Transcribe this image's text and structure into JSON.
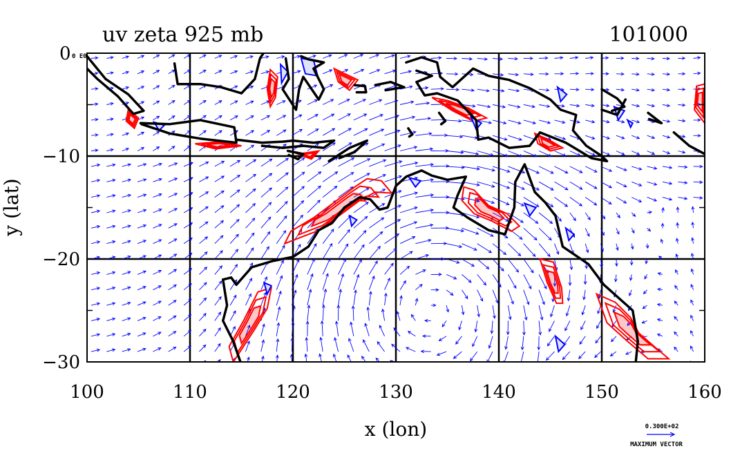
{
  "chart_data": {
    "type": "vector_field_contour_map",
    "title": "uv zeta 925 mb",
    "time_label": "101000",
    "corner_label": "0 E0",
    "xlabel": "x (lon)",
    "ylabel": "y (lat)",
    "xlim": [
      100,
      160
    ],
    "ylim": [
      -30,
      0
    ],
    "x_ticks": [
      100,
      110,
      120,
      130,
      140,
      150,
      160
    ],
    "y_ticks": [
      -10,
      -20,
      -30
    ],
    "y_tick_labels": [
      "−10",
      "−20",
      "−30"
    ],
    "grid": true,
    "vector_color": "#0000ff",
    "positive_contour_color": "#ff0000",
    "negative_contour_color": "#0000ff",
    "coastline_color": "#000000",
    "legend": {
      "position": "bottom-right",
      "magnitude_label": "0.300E+02",
      "caption": "MAXIMUM VECTOR"
    },
    "coastline_lon_lat": [
      [
        [
          113.2,
          -22.0
        ],
        [
          114.0,
          -21.8
        ],
        [
          114.5,
          -22.5
        ],
        [
          116.0,
          -20.8
        ],
        [
          118.0,
          -20.2
        ],
        [
          120.0,
          -19.8
        ],
        [
          121.5,
          -18.8
        ],
        [
          122.5,
          -17.2
        ],
        [
          123.8,
          -16.5
        ],
        [
          125.0,
          -15.0
        ],
        [
          126.5,
          -14.0
        ],
        [
          127.5,
          -14.2
        ],
        [
          128.4,
          -15.2
        ],
        [
          129.2,
          -15.0
        ],
        [
          130.0,
          -12.9
        ],
        [
          131.0,
          -12.0
        ],
        [
          132.5,
          -11.4
        ],
        [
          133.5,
          -11.9
        ],
        [
          135.0,
          -12.3
        ],
        [
          136.8,
          -12.0
        ],
        [
          136.0,
          -13.8
        ],
        [
          135.6,
          -15.0
        ],
        [
          137.0,
          -16.0
        ],
        [
          139.0,
          -17.2
        ],
        [
          140.6,
          -17.6
        ],
        [
          141.5,
          -15.0
        ],
        [
          141.6,
          -12.5
        ],
        [
          142.5,
          -10.8
        ],
        [
          143.5,
          -13.5
        ],
        [
          144.5,
          -14.5
        ],
        [
          145.5,
          -15.8
        ],
        [
          146.2,
          -18.8
        ],
        [
          148.7,
          -20.5
        ],
        [
          150.2,
          -22.5
        ],
        [
          153.0,
          -25.0
        ],
        [
          153.5,
          -28.0
        ],
        [
          153.3,
          -30.0
        ]
      ],
      [
        [
          113.2,
          -22.0
        ],
        [
          113.6,
          -24.5
        ],
        [
          113.2,
          -26.0
        ],
        [
          114.2,
          -28.0
        ],
        [
          114.9,
          -30.0
        ]
      ],
      [
        [
          95.0,
          5.0
        ],
        [
          97.8,
          2.2
        ],
        [
          100.0,
          -0.3
        ],
        [
          101.8,
          -2.5
        ],
        [
          104.0,
          -4.0
        ],
        [
          105.5,
          -5.6
        ],
        [
          104.5,
          -5.9
        ],
        [
          103.0,
          -4.2
        ],
        [
          101.0,
          -2.5
        ],
        [
          99.5,
          -1.0
        ],
        [
          98.0,
          1.0
        ]
      ],
      [
        [
          105.2,
          -6.8
        ],
        [
          108.0,
          -6.9
        ],
        [
          111.0,
          -6.5
        ],
        [
          114.3,
          -7.2
        ],
        [
          114.5,
          -8.7
        ],
        [
          111.0,
          -8.3
        ],
        [
          108.0,
          -7.8
        ],
        [
          105.3,
          -6.9
        ]
      ],
      [
        [
          114.5,
          -8.4
        ],
        [
          117.0,
          -8.7
        ],
        [
          119.0,
          -8.6
        ],
        [
          120.0,
          -8.5
        ],
        [
          122.0,
          -8.7
        ],
        [
          124.0,
          -8.5
        ],
        [
          123.0,
          -9.2
        ],
        [
          121.0,
          -9.0
        ],
        [
          119.0,
          -9.2
        ],
        [
          117.0,
          -9.0
        ]
      ],
      [
        [
          119.5,
          -9.5
        ],
        [
          121.0,
          -9.8
        ],
        [
          120.5,
          -10.3
        ],
        [
          119.6,
          -9.9
        ]
      ],
      [
        [
          123.5,
          -10.5
        ],
        [
          125.5,
          -9.2
        ],
        [
          127.2,
          -8.5
        ],
        [
          126.0,
          -9.6
        ],
        [
          124.5,
          -10.2
        ]
      ],
      [
        [
          108.5,
          -1.0
        ],
        [
          108.8,
          -3.0
        ],
        [
          111.0,
          -3.0
        ],
        [
          113.0,
          -3.3
        ],
        [
          115.0,
          -3.9
        ],
        [
          116.3,
          -2.5
        ],
        [
          116.8,
          -0.5
        ],
        [
          117.8,
          1.0
        ]
      ],
      [
        [
          119.3,
          -0.5
        ],
        [
          119.6,
          -2.5
        ],
        [
          119.0,
          -3.5
        ],
        [
          120.3,
          -5.5
        ],
        [
          120.6,
          -3.5
        ],
        [
          121.0,
          -2.3
        ],
        [
          122.5,
          -4.5
        ],
        [
          123.0,
          -3.5
        ],
        [
          122.0,
          -1.5
        ],
        [
          123.0,
          -0.9
        ],
        [
          121.5,
          -0.6
        ],
        [
          120.8,
          -0.3
        ]
      ],
      [
        [
          126.0,
          -3.1
        ],
        [
          127.0,
          -3.2
        ],
        [
          127.1,
          -3.8
        ],
        [
          126.2,
          -3.8
        ]
      ],
      [
        [
          128.0,
          -3.1
        ],
        [
          129.5,
          -2.8
        ],
        [
          130.8,
          -3.3
        ],
        [
          129.0,
          -3.6
        ]
      ],
      [
        [
          131.0,
          -0.9
        ],
        [
          132.5,
          -0.4
        ],
        [
          134.0,
          -0.9
        ],
        [
          134.3,
          -2.3
        ],
        [
          135.5,
          -3.3
        ],
        [
          137.5,
          -1.5
        ],
        [
          139.0,
          -2.2
        ],
        [
          141.0,
          -2.6
        ],
        [
          143.0,
          -3.4
        ],
        [
          145.0,
          -4.5
        ],
        [
          146.0,
          -5.5
        ],
        [
          147.5,
          -6.0
        ],
        [
          147.2,
          -7.5
        ],
        [
          148.5,
          -9.0
        ],
        [
          150.0,
          -10.0
        ],
        [
          150.5,
          -10.5
        ],
        [
          149.0,
          -10.2
        ],
        [
          146.5,
          -8.7
        ],
        [
          144.0,
          -7.7
        ],
        [
          143.0,
          -9.0
        ],
        [
          141.0,
          -9.2
        ],
        [
          139.0,
          -8.2
        ],
        [
          138.0,
          -8.4
        ],
        [
          137.8,
          -6.5
        ],
        [
          136.0,
          -4.6
        ],
        [
          134.0,
          -3.9
        ],
        [
          132.8,
          -4.1
        ],
        [
          132.0,
          -2.8
        ],
        [
          133.5,
          -2.2
        ],
        [
          132.0,
          -1.7
        ]
      ],
      [
        [
          150.0,
          -3.5
        ],
        [
          151.5,
          -4.4
        ],
        [
          152.2,
          -5.2
        ],
        [
          151.0,
          -5.6
        ]
      ],
      [
        [
          150.0,
          -5.5
        ],
        [
          151.5,
          -6.0
        ],
        [
          152.3,
          -4.5
        ]
      ],
      [
        [
          154.5,
          -5.8
        ],
        [
          155.8,
          -6.8
        ],
        [
          154.6,
          -6.4
        ]
      ],
      [
        [
          157.0,
          -7.7
        ],
        [
          158.5,
          -9.0
        ],
        [
          160.0,
          -9.8
        ]
      ],
      [
        [
          134.2,
          -5.8
        ],
        [
          134.8,
          -6.6
        ],
        [
          134.4,
          -6.9
        ]
      ],
      [
        [
          131.2,
          -7.3
        ],
        [
          131.6,
          -7.9
        ],
        [
          131.3,
          -8.1
        ]
      ]
    ],
    "positive_vorticity_regions_lon_lat": [
      [
        [
          127.2,
          -12.2
        ],
        [
          128.6,
          -12.4
        ],
        [
          129.6,
          -13.6
        ],
        [
          128.0,
          -13.5
        ],
        [
          126.5,
          -14.3
        ],
        [
          124.2,
          -16.0
        ],
        [
          122.3,
          -17.3
        ],
        [
          121.0,
          -17.8
        ],
        [
          119.2,
          -18.5
        ],
        [
          119.8,
          -17.3
        ],
        [
          122.0,
          -16.0
        ],
        [
          124.0,
          -14.5
        ],
        [
          126.0,
          -13.0
        ]
      ],
      [
        [
          116.6,
          -23.2
        ],
        [
          117.9,
          -22.8
        ],
        [
          117.5,
          -24.8
        ],
        [
          116.3,
          -26.8
        ],
        [
          115.0,
          -28.8
        ],
        [
          114.2,
          -30.0
        ],
        [
          113.8,
          -28.5
        ],
        [
          115.2,
          -26.0
        ]
      ],
      [
        [
          136.6,
          -13.0
        ],
        [
          137.6,
          -13.3
        ],
        [
          139.0,
          -14.8
        ],
        [
          140.8,
          -15.6
        ],
        [
          142.0,
          -16.8
        ],
        [
          141.2,
          -17.3
        ],
        [
          139.3,
          -16.3
        ],
        [
          137.6,
          -15.6
        ],
        [
          136.4,
          -14.3
        ]
      ],
      [
        [
          144.0,
          -20.0
        ],
        [
          145.3,
          -20.3
        ],
        [
          146.1,
          -22.8
        ],
        [
          146.2,
          -24.3
        ],
        [
          145.6,
          -24.3
        ],
        [
          144.7,
          -22.3
        ]
      ],
      [
        [
          149.5,
          -23.4
        ],
        [
          151.3,
          -24.2
        ],
        [
          152.8,
          -25.7
        ],
        [
          153.6,
          -27.2
        ],
        [
          155.2,
          -28.6
        ],
        [
          156.5,
          -29.7
        ],
        [
          154.5,
          -29.7
        ],
        [
          152.5,
          -28.0
        ],
        [
          150.5,
          -26.2
        ]
      ],
      [
        [
          133.5,
          -4.3
        ],
        [
          135.0,
          -4.6
        ],
        [
          137.0,
          -5.3
        ],
        [
          138.8,
          -6.3
        ],
        [
          137.5,
          -6.6
        ],
        [
          135.5,
          -5.6
        ]
      ],
      [
        [
          143.5,
          -7.8
        ],
        [
          145.0,
          -8.5
        ],
        [
          146.2,
          -9.2
        ],
        [
          145.0,
          -9.5
        ],
        [
          143.8,
          -8.8
        ]
      ],
      [
        [
          159.2,
          -3.2
        ],
        [
          160.0,
          -3.0
        ],
        [
          160.0,
          -6.8
        ],
        [
          159.0,
          -5.5
        ]
      ],
      [
        [
          104.0,
          -5.5
        ],
        [
          105.0,
          -6.3
        ],
        [
          104.6,
          -7.3
        ],
        [
          103.8,
          -6.6
        ]
      ],
      [
        [
          117.8,
          -1.6
        ],
        [
          118.5,
          -2.3
        ],
        [
          118.3,
          -4.3
        ],
        [
          117.8,
          -5.2
        ],
        [
          117.5,
          -3.5
        ]
      ],
      [
        [
          110.5,
          -8.8
        ],
        [
          113.0,
          -8.6
        ],
        [
          115.0,
          -9.0
        ],
        [
          112.5,
          -9.3
        ]
      ],
      [
        [
          120.5,
          -9.8
        ],
        [
          122.5,
          -9.5
        ],
        [
          121.8,
          -10.3
        ]
      ],
      [
        [
          124.0,
          -1.5
        ],
        [
          126.3,
          -2.6
        ],
        [
          125.5,
          -3.6
        ],
        [
          124.4,
          -2.8
        ]
      ]
    ],
    "negative_vorticity_regions_lon_lat": [
      [
        [
          118.8,
          -1.1
        ],
        [
          119.5,
          -1.8
        ],
        [
          118.9,
          -2.9
        ]
      ],
      [
        [
          120.8,
          -0.5
        ],
        [
          122.0,
          -0.7
        ],
        [
          122.4,
          -2.2
        ],
        [
          121.2,
          -2.0
        ]
      ],
      [
        [
          131.3,
          -12.1
        ],
        [
          132.4,
          -12.4
        ],
        [
          131.9,
          -13.0
        ]
      ],
      [
        [
          142.5,
          -14.6
        ],
        [
          143.6,
          -15.0
        ],
        [
          143.0,
          -15.8
        ]
      ],
      [
        [
          146.5,
          -17.0
        ],
        [
          147.3,
          -17.6
        ],
        [
          146.8,
          -18.2
        ]
      ],
      [
        [
          151.2,
          -5.2
        ],
        [
          152.2,
          -5.6
        ],
        [
          151.6,
          -6.5
        ]
      ],
      [
        [
          137.3,
          -6.2
        ],
        [
          138.3,
          -6.8
        ],
        [
          137.8,
          -7.4
        ]
      ],
      [
        [
          145.7,
          -3.3
        ],
        [
          146.6,
          -4.0
        ],
        [
          146.0,
          -4.7
        ]
      ],
      [
        [
          117.2,
          -22.3
        ],
        [
          117.9,
          -22.6
        ],
        [
          117.5,
          -23.4
        ]
      ],
      [
        [
          106.5,
          -6.7
        ],
        [
          107.5,
          -7.0
        ],
        [
          107.0,
          -7.5
        ]
      ],
      [
        [
          125.5,
          -15.8
        ],
        [
          126.2,
          -16.2
        ],
        [
          125.7,
          -16.8
        ]
      ],
      [
        [
          145.5,
          -27.5
        ],
        [
          146.4,
          -28.3
        ],
        [
          145.8,
          -29.0
        ]
      ],
      [
        [
          152.5,
          -6.5
        ],
        [
          153.0,
          -6.8
        ],
        [
          152.8,
          -7.2
        ]
      ]
    ],
    "mass_center_lon_lat": [
      133,
      -22.5
    ],
    "vector_spacing_deg": 1.5,
    "max_vector_magnitude": 30
  }
}
